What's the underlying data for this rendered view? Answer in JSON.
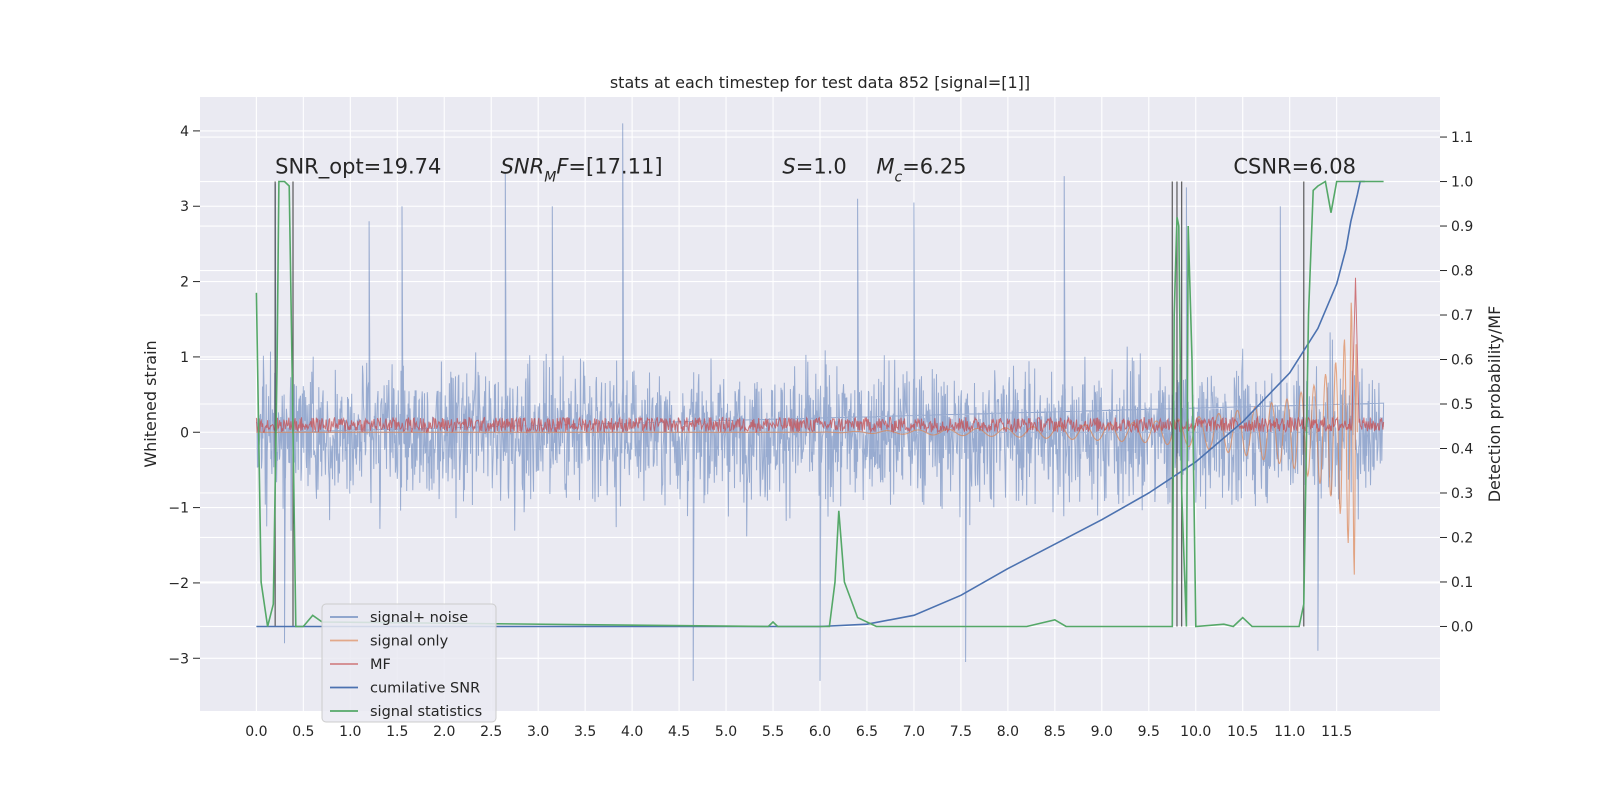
{
  "chart_data": {
    "type": "line",
    "title": "stats at each timestep for test data 852 [signal=[1]]",
    "ylabel_left": "Whitened strain",
    "ylabel_right": "Detection probability/MF",
    "xlim": [
      -0.6,
      12.6
    ],
    "ylim_left": [
      -3.7,
      4.45
    ],
    "ylim_right": [
      -0.19,
      1.19
    ],
    "xticks": [
      "0.0",
      "0.5",
      "1.0",
      "1.5",
      "2.0",
      "2.5",
      "3.0",
      "3.5",
      "4.0",
      "4.5",
      "5.0",
      "5.5",
      "6.0",
      "6.5",
      "7.0",
      "7.5",
      "8.0",
      "8.5",
      "9.0",
      "9.5",
      "10.0",
      "10.5",
      "11.0",
      "11.5"
    ],
    "yticks_left": [
      "−3",
      "−2",
      "−1",
      "0",
      "1",
      "2",
      "3",
      "4"
    ],
    "yticks_right": [
      "0.0",
      "0.1",
      "0.2",
      "0.3",
      "0.4",
      "0.5",
      "0.6",
      "0.7",
      "0.8",
      "0.9",
      "1.0",
      "1.1"
    ],
    "grid": true,
    "legend_position": "lower-left",
    "legend_entries": [
      {
        "label": "signal+ noise",
        "color": "#4c72b0"
      },
      {
        "label": "signal only",
        "color": "#dd8452"
      },
      {
        "label": "MF",
        "color": "#c44e52"
      },
      {
        "label": "cumilative SNR",
        "color": "#4c72b0"
      },
      {
        "label": "signal statistics",
        "color": "#55a868"
      }
    ],
    "series": [
      {
        "name": "signal+ noise",
        "axis": "left",
        "color": "#4c72b0",
        "style": "dense noise trace centred on 0 (approx ±1.5 std band, excursions to ±3)",
        "x_range": [
          0.0,
          12.0
        ],
        "peaks": [
          [
            0.2,
            3.3
          ],
          [
            0.3,
            -2.8
          ],
          [
            1.2,
            2.8
          ],
          [
            1.55,
            3.0
          ],
          [
            2.65,
            3.45
          ],
          [
            3.15,
            3.0
          ],
          [
            3.9,
            4.1
          ],
          [
            4.65,
            -3.3
          ],
          [
            6.0,
            -3.3
          ],
          [
            6.4,
            3.1
          ],
          [
            7.0,
            3.05
          ],
          [
            7.55,
            -3.05
          ],
          [
            8.6,
            3.4
          ],
          [
            9.9,
            3.25
          ],
          [
            10.9,
            3.0
          ],
          [
            11.3,
            -2.9
          ]
        ]
      },
      {
        "name": "signal only",
        "axis": "left",
        "color": "#dd8452",
        "style": "chirp whose envelope grows toward merger",
        "x": [
          0.0,
          6.0,
          7.0,
          8.0,
          9.0,
          9.5,
          10.0,
          10.5,
          11.0,
          11.3,
          11.5,
          11.6,
          11.65,
          11.7,
          11.72
        ],
        "envelope": [
          0.0,
          0.0,
          0.03,
          0.06,
          0.11,
          0.14,
          0.2,
          0.3,
          0.45,
          0.65,
          0.95,
          1.3,
          1.7,
          2.0,
          0.0
        ]
      },
      {
        "name": "MF",
        "axis": "left",
        "color": "#c44e52",
        "style": "narrow band between 0.0 and 0.2 with spike near 11.7",
        "x_range": [
          0.0,
          12.0
        ],
        "band": [
          0.0,
          0.2
        ],
        "spike": [
          11.7,
          2.05
        ]
      },
      {
        "name": "cumilative SNR",
        "axis": "right",
        "color": "#4c72b0",
        "x": [
          0.0,
          6.0,
          6.5,
          7.0,
          7.5,
          8.0,
          8.5,
          9.0,
          9.5,
          10.0,
          10.5,
          11.0,
          11.3,
          11.5,
          11.6,
          11.65,
          11.72,
          11.75,
          11.8
        ],
        "y": [
          0.0,
          0.0,
          0.005,
          0.025,
          0.07,
          0.13,
          0.185,
          0.24,
          0.3,
          0.37,
          0.46,
          0.57,
          0.67,
          0.77,
          0.85,
          0.91,
          0.97,
          1.0,
          1.0
        ]
      },
      {
        "name": "signal statistics",
        "axis": "right",
        "color": "#55a868",
        "x": [
          0.0,
          0.05,
          0.12,
          0.18,
          0.22,
          0.24,
          0.3,
          0.35,
          0.38,
          0.42,
          0.5,
          0.6,
          0.7,
          5.45,
          5.5,
          5.55,
          6.1,
          6.16,
          6.2,
          6.26,
          6.4,
          6.6,
          7.0,
          8.2,
          8.5,
          8.62,
          8.8,
          9.5,
          9.75,
          9.77,
          9.8,
          9.82,
          9.85,
          9.9,
          9.92,
          9.96,
          10.0,
          10.3,
          10.4,
          10.45,
          10.5,
          10.6,
          10.8,
          11.1,
          11.15,
          11.2,
          11.25,
          11.3,
          11.38,
          11.44,
          11.5,
          11.6,
          11.7,
          11.8,
          12.0
        ],
        "y": [
          0.75,
          0.1,
          0.0,
          0.05,
          0.58,
          1.0,
          1.0,
          0.99,
          0.58,
          0.0,
          0.0,
          0.025,
          0.01,
          0.0,
          0.01,
          0.0,
          0.0,
          0.1,
          0.26,
          0.1,
          0.02,
          0.0,
          0.0,
          0.0,
          0.015,
          0.0,
          0.0,
          0.0,
          0.0,
          0.7,
          0.92,
          0.9,
          0.3,
          0.0,
          0.9,
          0.6,
          0.0,
          0.005,
          0.0,
          0.01,
          0.02,
          0.0,
          0.0,
          0.0,
          0.05,
          0.7,
          0.98,
          0.99,
          1.0,
          0.93,
          1.0,
          1.0,
          1.0,
          1.0,
          1.0
        ]
      }
    ],
    "vertical_lines": [
      0.2,
      0.39,
      9.75,
      9.8,
      9.85,
      11.15
    ],
    "annotations": [
      {
        "text": "SNR_opt=19.74",
        "x": 0.2,
        "y": 1.0
      },
      {
        "text_parts": [
          "SNR",
          "M",
          "F=[17.11]"
        ],
        "styles": [
          "italic",
          "italic-sub",
          "italic-then-normal"
        ],
        "x": 2.6,
        "y": 1.0
      },
      {
        "text_parts": [
          "S",
          "=1.0"
        ],
        "styles": [
          "italic",
          "normal"
        ],
        "x": 5.6,
        "y": 1.0
      },
      {
        "text_parts": [
          "M",
          "c",
          "=6.25"
        ],
        "styles": [
          "italic",
          "italic-sub",
          "normal"
        ],
        "x": 6.6,
        "y": 1.0
      },
      {
        "text": "CSNR=6.08",
        "x": 10.4,
        "y": 1.0
      }
    ]
  }
}
